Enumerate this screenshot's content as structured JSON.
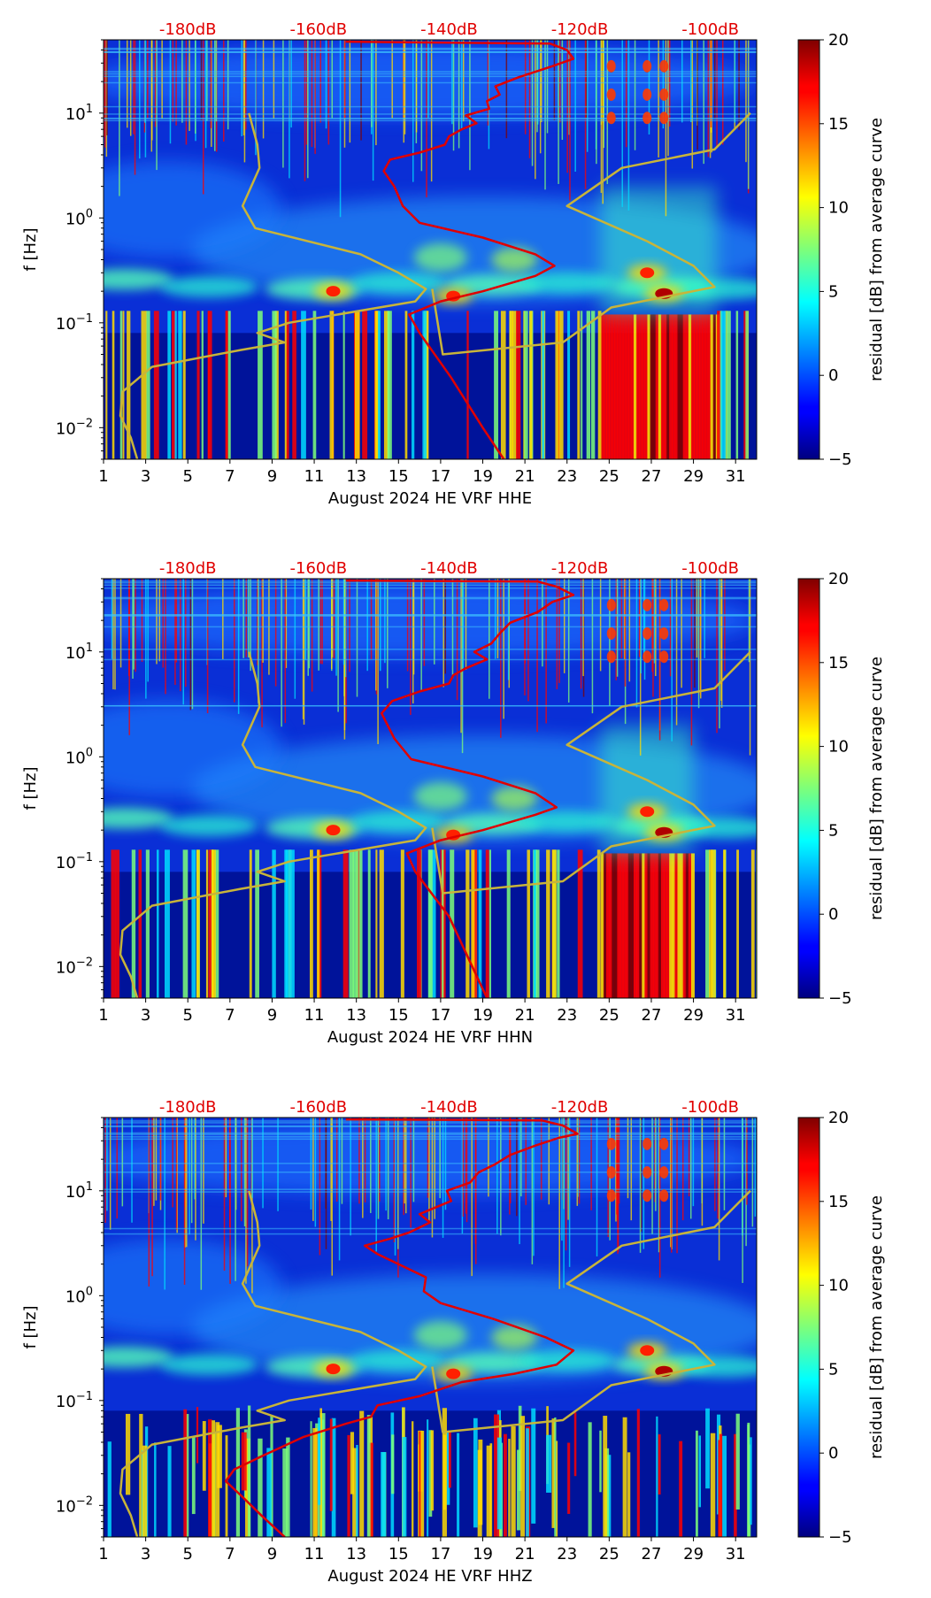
{
  "chart_data": [
    {
      "type": "heatmap",
      "xlabel": "August 2024 HE VRF  HHE",
      "ylabel": "f [Hz]",
      "colorbar_label": "residual [dB] from average curve",
      "x_ticks": [
        "1",
        "3",
        "5",
        "7",
        "9",
        "11",
        "13",
        "15",
        "17",
        "19",
        "21",
        "23",
        "25",
        "27",
        "29",
        "31"
      ],
      "y_ticks": [
        {
          "exp": "−2",
          "value": 0.01
        },
        {
          "exp": "−1",
          "value": 0.1
        },
        {
          "exp": "0",
          "value": 1
        },
        {
          "exp": "1",
          "value": 10
        }
      ],
      "xlim": [
        1,
        32
      ],
      "ylim": [
        0.005,
        50
      ],
      "colorbar_ticks": [
        "20",
        "15",
        "10",
        "5",
        "0",
        "−5"
      ],
      "colorbar_range": [
        -5,
        20
      ],
      "top_db_labels": [
        "-180dB",
        "-160dB",
        "-140dB",
        "-120dB",
        "-100dB"
      ],
      "top_db_days": [
        5,
        11.2,
        17.4,
        23.6,
        29.8
      ],
      "red_curve": [
        [
          20,
          0.005
        ],
        [
          19,
          0.01
        ],
        [
          17.5,
          0.03
        ],
        [
          16,
          0.08
        ],
        [
          15.5,
          0.12
        ],
        [
          17,
          0.16
        ],
        [
          19,
          0.2
        ],
        [
          21.5,
          0.28
        ],
        [
          22.4,
          0.35
        ],
        [
          21.5,
          0.45
        ],
        [
          19,
          0.65
        ],
        [
          16,
          0.9
        ],
        [
          15.2,
          1.3
        ],
        [
          14.8,
          2
        ],
        [
          14.3,
          2.8
        ],
        [
          14.6,
          3.6
        ],
        [
          16,
          4.2
        ],
        [
          17.2,
          5
        ],
        [
          17.4,
          6
        ],
        [
          18,
          7
        ],
        [
          18.7,
          8
        ],
        [
          18.2,
          9.5
        ],
        [
          19.3,
          11
        ],
        [
          19.2,
          13
        ],
        [
          19.8,
          15
        ],
        [
          19.6,
          18
        ],
        [
          20.7,
          22
        ],
        [
          22.3,
          28
        ],
        [
          23.3,
          33
        ],
        [
          23,
          40
        ],
        [
          22.2,
          46
        ],
        [
          12.5,
          48
        ]
      ],
      "ref_curve": [
        [
          2.6,
          0.005
        ],
        [
          2.3,
          0.008
        ],
        [
          1.8,
          0.013
        ],
        [
          1.9,
          0.022
        ],
        [
          3.3,
          0.038
        ],
        [
          7.5,
          0.055
        ],
        [
          9.6,
          0.065
        ],
        [
          8.3,
          0.08
        ],
        [
          9.8,
          0.1
        ],
        [
          15.8,
          0.16
        ],
        [
          16.3,
          0.21
        ],
        [
          15,
          0.3
        ],
        [
          13.2,
          0.45
        ],
        [
          8.2,
          0.8
        ],
        [
          7.6,
          1.3
        ],
        [
          8.4,
          3
        ],
        [
          8.3,
          5
        ],
        [
          7.9,
          10
        ],
        [
          16.6,
          0.21
        ],
        [
          17.1,
          0.05
        ],
        [
          22.8,
          0.065
        ],
        [
          25.1,
          0.14
        ],
        [
          30,
          0.22
        ],
        [
          29,
          0.35
        ],
        [
          26.8,
          0.6
        ],
        [
          23,
          1.3
        ],
        [
          25.6,
          3
        ],
        [
          30,
          4.5
        ],
        [
          31.7,
          10
        ]
      ],
      "hot_spots": [
        {
          "day": 27.6,
          "f": 0.19
        },
        {
          "day": 11.9,
          "f": 0.2
        },
        {
          "day": 17.6,
          "f": 0.18
        },
        {
          "day": 26.8,
          "f": 0.3
        }
      ],
      "strong_band": [
        24.6,
        30.1
      ],
      "high_freq_days": [
        25.1,
        26.8,
        27.6
      ]
    },
    {
      "type": "heatmap",
      "xlabel": "August 2024 HE VRF  HHN",
      "ylabel": "f [Hz]",
      "colorbar_label": "residual [dB] from average curve",
      "x_ticks": [
        "1",
        "3",
        "5",
        "7",
        "9",
        "11",
        "13",
        "15",
        "17",
        "19",
        "21",
        "23",
        "25",
        "27",
        "29",
        "31"
      ],
      "y_ticks": [
        {
          "exp": "−2",
          "value": 0.01
        },
        {
          "exp": "−1",
          "value": 0.1
        },
        {
          "exp": "0",
          "value": 1
        },
        {
          "exp": "1",
          "value": 10
        }
      ],
      "xlim": [
        1,
        32
      ],
      "ylim": [
        0.005,
        50
      ],
      "colorbar_ticks": [
        "20",
        "15",
        "10",
        "5",
        "0",
        "−5"
      ],
      "colorbar_range": [
        -5,
        20
      ],
      "top_db_labels": [
        "-180dB",
        "-160dB",
        "-140dB",
        "-120dB",
        "-100dB"
      ],
      "top_db_days": [
        5,
        11.2,
        17.4,
        23.6,
        29.8
      ],
      "red_curve": [
        [
          19.2,
          0.005
        ],
        [
          18.5,
          0.01
        ],
        [
          17.4,
          0.03
        ],
        [
          15.8,
          0.08
        ],
        [
          15.4,
          0.12
        ],
        [
          17,
          0.16
        ],
        [
          19,
          0.2
        ],
        [
          21.5,
          0.28
        ],
        [
          22.5,
          0.33
        ],
        [
          21.5,
          0.45
        ],
        [
          19,
          0.65
        ],
        [
          15.6,
          0.95
        ],
        [
          14.8,
          1.5
        ],
        [
          14.2,
          2.6
        ],
        [
          14.7,
          3.4
        ],
        [
          16,
          4.2
        ],
        [
          17.4,
          5
        ],
        [
          17.6,
          6
        ],
        [
          18.2,
          7
        ],
        [
          19.2,
          8.5
        ],
        [
          18.6,
          10
        ],
        [
          19.4,
          12
        ],
        [
          19.8,
          15
        ],
        [
          20.3,
          19
        ],
        [
          21.6,
          24
        ],
        [
          22.3,
          30
        ],
        [
          23.3,
          35
        ],
        [
          22.5,
          42
        ],
        [
          21.6,
          47
        ],
        [
          12.5,
          48
        ]
      ],
      "ref_curve": [
        [
          2.6,
          0.005
        ],
        [
          2.3,
          0.008
        ],
        [
          1.8,
          0.013
        ],
        [
          1.9,
          0.022
        ],
        [
          3.3,
          0.038
        ],
        [
          7.5,
          0.055
        ],
        [
          9.6,
          0.065
        ],
        [
          8.3,
          0.08
        ],
        [
          9.8,
          0.1
        ],
        [
          15.8,
          0.16
        ],
        [
          16.3,
          0.21
        ],
        [
          15,
          0.3
        ],
        [
          13.2,
          0.45
        ],
        [
          8.2,
          0.8
        ],
        [
          7.6,
          1.3
        ],
        [
          8.4,
          3
        ],
        [
          8.3,
          5
        ],
        [
          7.9,
          10
        ],
        [
          16.6,
          0.21
        ],
        [
          17.1,
          0.05
        ],
        [
          22.8,
          0.065
        ],
        [
          25.1,
          0.14
        ],
        [
          30,
          0.22
        ],
        [
          29,
          0.35
        ],
        [
          26.8,
          0.6
        ],
        [
          23,
          1.3
        ],
        [
          25.6,
          3
        ],
        [
          30,
          4.5
        ],
        [
          31.7,
          10
        ]
      ],
      "hot_spots": [
        {
          "day": 27.6,
          "f": 0.19
        },
        {
          "day": 11.9,
          "f": 0.2
        },
        {
          "day": 17.6,
          "f": 0.18
        },
        {
          "day": 26.8,
          "f": 0.3
        }
      ],
      "strong_band": [
        24.6,
        29.0
      ],
      "high_freq_days": [
        25.1,
        26.8,
        27.6
      ]
    },
    {
      "type": "heatmap",
      "xlabel": "August 2024 HE VRF  HHZ",
      "ylabel": "f [Hz]",
      "colorbar_label": "residual [dB] from average curve",
      "x_ticks": [
        "1",
        "3",
        "5",
        "7",
        "9",
        "11",
        "13",
        "15",
        "17",
        "19",
        "21",
        "23",
        "25",
        "27",
        "29",
        "31"
      ],
      "y_ticks": [
        {
          "exp": "−2",
          "value": 0.01
        },
        {
          "exp": "−1",
          "value": 0.1
        },
        {
          "exp": "0",
          "value": 1
        },
        {
          "exp": "1",
          "value": 10
        }
      ],
      "xlim": [
        1,
        32
      ],
      "ylim": [
        0.005,
        50
      ],
      "colorbar_ticks": [
        "20",
        "15",
        "10",
        "5",
        "0",
        "−5"
      ],
      "colorbar_range": [
        -5,
        20
      ],
      "top_db_labels": [
        "-180dB",
        "-160dB",
        "-140dB",
        "-120dB",
        "-100dB"
      ],
      "top_db_days": [
        5,
        11.2,
        17.4,
        23.6,
        29.8
      ],
      "red_curve": [
        [
          9.6,
          0.005
        ],
        [
          8.5,
          0.008
        ],
        [
          7.6,
          0.012
        ],
        [
          6.8,
          0.017
        ],
        [
          7.2,
          0.022
        ],
        [
          8.6,
          0.03
        ],
        [
          10.5,
          0.045
        ],
        [
          12.5,
          0.06
        ],
        [
          13.7,
          0.07
        ],
        [
          14,
          0.09
        ],
        [
          16,
          0.11
        ],
        [
          18,
          0.15
        ],
        [
          20.5,
          0.18
        ],
        [
          22.5,
          0.22
        ],
        [
          23.3,
          0.3
        ],
        [
          22,
          0.4
        ],
        [
          19.5,
          0.6
        ],
        [
          17,
          0.85
        ],
        [
          16.2,
          1.1
        ],
        [
          16.3,
          1.5
        ],
        [
          14,
          2.5
        ],
        [
          13.4,
          3
        ],
        [
          14.6,
          3.5
        ],
        [
          15.5,
          4
        ],
        [
          16.5,
          5
        ],
        [
          16,
          6
        ],
        [
          16.8,
          7
        ],
        [
          17.5,
          8
        ],
        [
          17.3,
          10
        ],
        [
          18.4,
          12
        ],
        [
          18.8,
          15
        ],
        [
          19.6,
          18
        ],
        [
          20.3,
          22
        ],
        [
          21.5,
          27
        ],
        [
          22.6,
          32
        ],
        [
          23.5,
          35
        ],
        [
          22.8,
          42
        ],
        [
          21.8,
          47
        ],
        [
          12.5,
          48
        ]
      ],
      "ref_curve": [
        [
          2.6,
          0.005
        ],
        [
          2.3,
          0.008
        ],
        [
          1.8,
          0.013
        ],
        [
          1.9,
          0.022
        ],
        [
          3.3,
          0.038
        ],
        [
          7.5,
          0.055
        ],
        [
          9.6,
          0.065
        ],
        [
          8.3,
          0.08
        ],
        [
          9.8,
          0.1
        ],
        [
          15.8,
          0.16
        ],
        [
          16.3,
          0.21
        ],
        [
          15,
          0.3
        ],
        [
          13.2,
          0.45
        ],
        [
          8.2,
          0.8
        ],
        [
          7.6,
          1.3
        ],
        [
          8.4,
          3
        ],
        [
          8.3,
          5
        ],
        [
          7.9,
          10
        ],
        [
          16.6,
          0.21
        ],
        [
          17.1,
          0.05
        ],
        [
          22.8,
          0.065
        ],
        [
          25.1,
          0.14
        ],
        [
          30,
          0.22
        ],
        [
          29,
          0.35
        ],
        [
          26.8,
          0.6
        ],
        [
          23,
          1.3
        ],
        [
          25.6,
          3
        ],
        [
          30,
          4.5
        ],
        [
          31.7,
          10
        ]
      ],
      "hot_spots": [
        {
          "day": 27.6,
          "f": 0.19
        },
        {
          "day": 11.9,
          "f": 0.2
        },
        {
          "day": 17.6,
          "f": 0.18
        },
        {
          "day": 26.8,
          "f": 0.3
        }
      ],
      "strong_band": null,
      "high_freq_days": [
        25.1,
        26.8,
        27.6
      ]
    }
  ]
}
